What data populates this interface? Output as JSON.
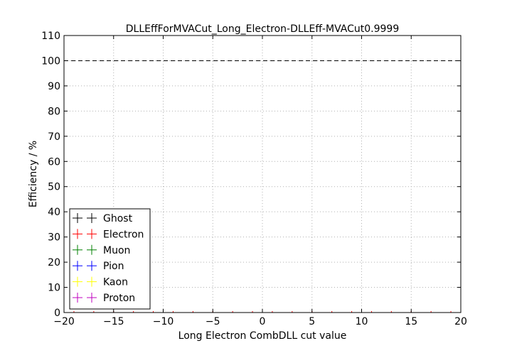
{
  "chart_data": {
    "type": "scatter",
    "title": "DLLEffForMVACut_Long_Electron-DLLEff-MVACut0.9999",
    "xlabel": "Long Electron CombDLL cut value",
    "ylabel": "Efficiency / %",
    "xlim": [
      -20,
      20
    ],
    "ylim": [
      0,
      110
    ],
    "xticks": [
      -20,
      -15,
      -10,
      -5,
      0,
      5,
      10,
      15,
      20
    ],
    "xtick_labels": [
      "−20",
      "−15",
      "−10",
      "−5",
      "0",
      "5",
      "10",
      "15",
      "20"
    ],
    "yticks": [
      0,
      10,
      20,
      30,
      40,
      50,
      60,
      70,
      80,
      90,
      100,
      110
    ],
    "ytick_labels": [
      "0",
      "10",
      "20",
      "30",
      "40",
      "50",
      "60",
      "70",
      "80",
      "90",
      "100",
      "110"
    ],
    "grid": true,
    "reference_line": {
      "y": 100,
      "style": "dashed",
      "color": "#000000"
    },
    "legend_position": "lower-left",
    "series": [
      {
        "name": "Ghost",
        "color": "#000000",
        "x": [],
        "y": []
      },
      {
        "name": "Electron",
        "color": "#ff0000",
        "x": [
          -19,
          -17,
          -15,
          -13,
          -11,
          -9,
          -7,
          -5,
          -3,
          -1,
          1,
          3,
          5,
          7,
          9,
          11,
          13,
          15,
          17,
          19
        ],
        "y": [
          0,
          0,
          0,
          0,
          0,
          0,
          0,
          0,
          0,
          0,
          0,
          0,
          0,
          0,
          0,
          0,
          0,
          0,
          0,
          0
        ]
      },
      {
        "name": "Muon",
        "color": "#008000",
        "x": [],
        "y": []
      },
      {
        "name": "Pion",
        "color": "#0000ff",
        "x": [],
        "y": []
      },
      {
        "name": "Kaon",
        "color": "#ffff00",
        "x": [],
        "y": []
      },
      {
        "name": "Proton",
        "color": "#bf00bf",
        "x": [],
        "y": []
      }
    ]
  }
}
